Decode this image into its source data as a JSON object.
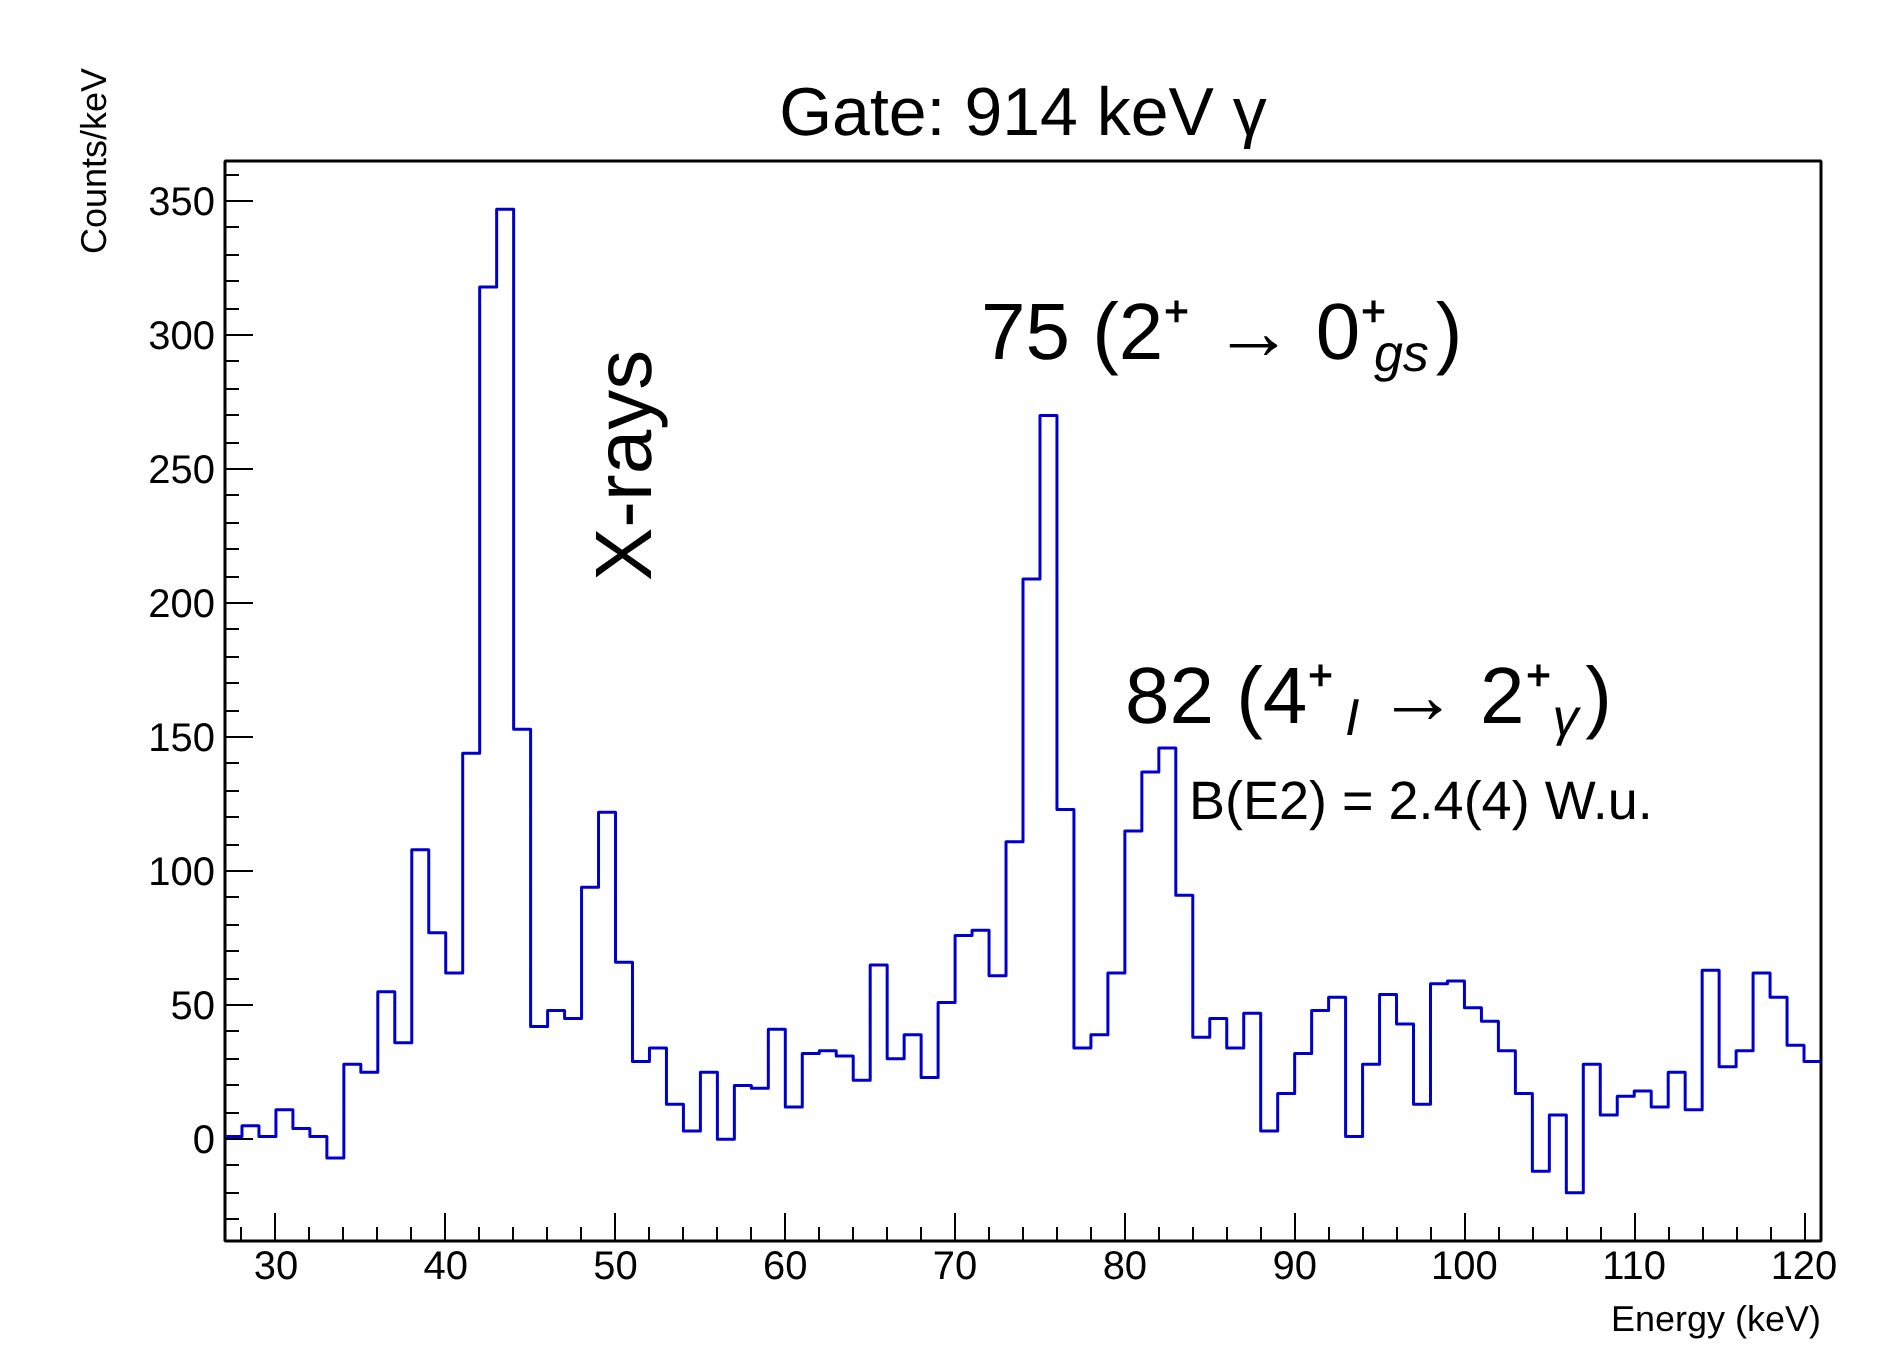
{
  "chart_data": {
    "type": "histogram",
    "title": "Gate: 914 keV γ",
    "xlabel": "Energy (keV)",
    "ylabel": "Counts/keV",
    "bins": [
      27,
      28,
      29,
      30,
      31,
      32,
      33,
      34,
      35,
      36,
      37,
      38,
      39,
      40,
      41,
      42,
      43,
      44,
      45,
      46,
      47,
      48,
      49,
      50,
      51,
      52,
      53,
      54,
      55,
      56,
      57,
      58,
      59,
      60,
      61,
      62,
      63,
      64,
      65,
      66,
      67,
      68,
      69,
      70,
      71,
      72,
      73,
      74,
      75,
      76,
      77,
      78,
      79,
      80,
      81,
      82,
      83,
      84,
      85,
      86,
      87,
      88,
      89,
      90,
      91,
      92,
      93,
      94,
      95,
      96,
      97,
      98,
      99,
      100,
      101,
      102,
      103,
      104,
      105,
      106,
      107,
      108,
      109,
      110,
      111,
      112,
      113,
      114,
      115,
      116,
      117,
      118,
      119,
      120,
      121
    ],
    "values": [
      1,
      5,
      1,
      11,
      4,
      1,
      -7,
      28,
      25,
      55,
      36,
      108,
      77,
      62,
      144,
      318,
      347,
      153,
      42,
      48,
      45,
      94,
      122,
      66,
      29,
      34,
      13,
      3,
      25,
      0,
      20,
      19,
      41,
      12,
      32,
      33,
      31,
      22,
      65,
      30,
      39,
      23,
      51,
      76,
      78,
      61,
      111,
      209,
      270,
      123,
      34,
      39,
      62,
      115,
      137,
      146,
      91,
      38,
      45,
      34,
      47,
      3,
      17,
      32,
      48,
      53,
      1,
      28,
      54,
      43,
      13,
      58,
      59,
      49,
      44,
      33,
      17,
      -12,
      9,
      -20,
      28,
      9,
      16,
      18,
      12,
      25,
      11,
      63,
      27,
      33,
      62,
      53,
      35,
      29
    ],
    "color": "#0000cc",
    "xlim": [
      27,
      121
    ],
    "ylim": [
      -38,
      365
    ],
    "xticks": [
      30,
      40,
      50,
      60,
      70,
      80,
      90,
      100,
      110,
      120
    ],
    "yticks": [
      0,
      50,
      100,
      150,
      200,
      250,
      300,
      350
    ],
    "grid": false,
    "annotations": [
      "X-rays",
      "75 (2⁺ → 0⁺$_{gs}$)",
      "82 (4⁺$_{I}$ → 2⁺$_{γ}$)",
      "B(E2) = 2.4(4) W.u."
    ]
  }
}
